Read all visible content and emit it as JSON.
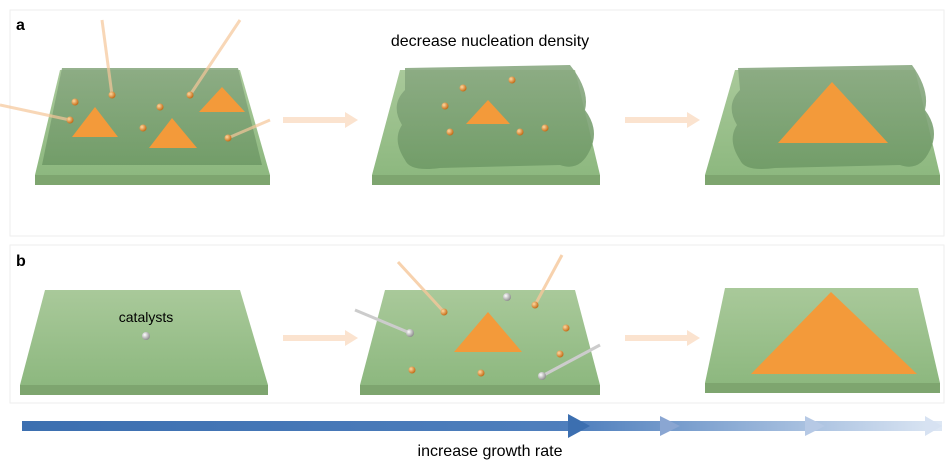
{
  "panels": [
    {
      "label": "a",
      "caption": "decrease nucleation density"
    },
    {
      "label": "b",
      "annotation": "catalysts"
    }
  ],
  "footer": "increase growth rate"
}
